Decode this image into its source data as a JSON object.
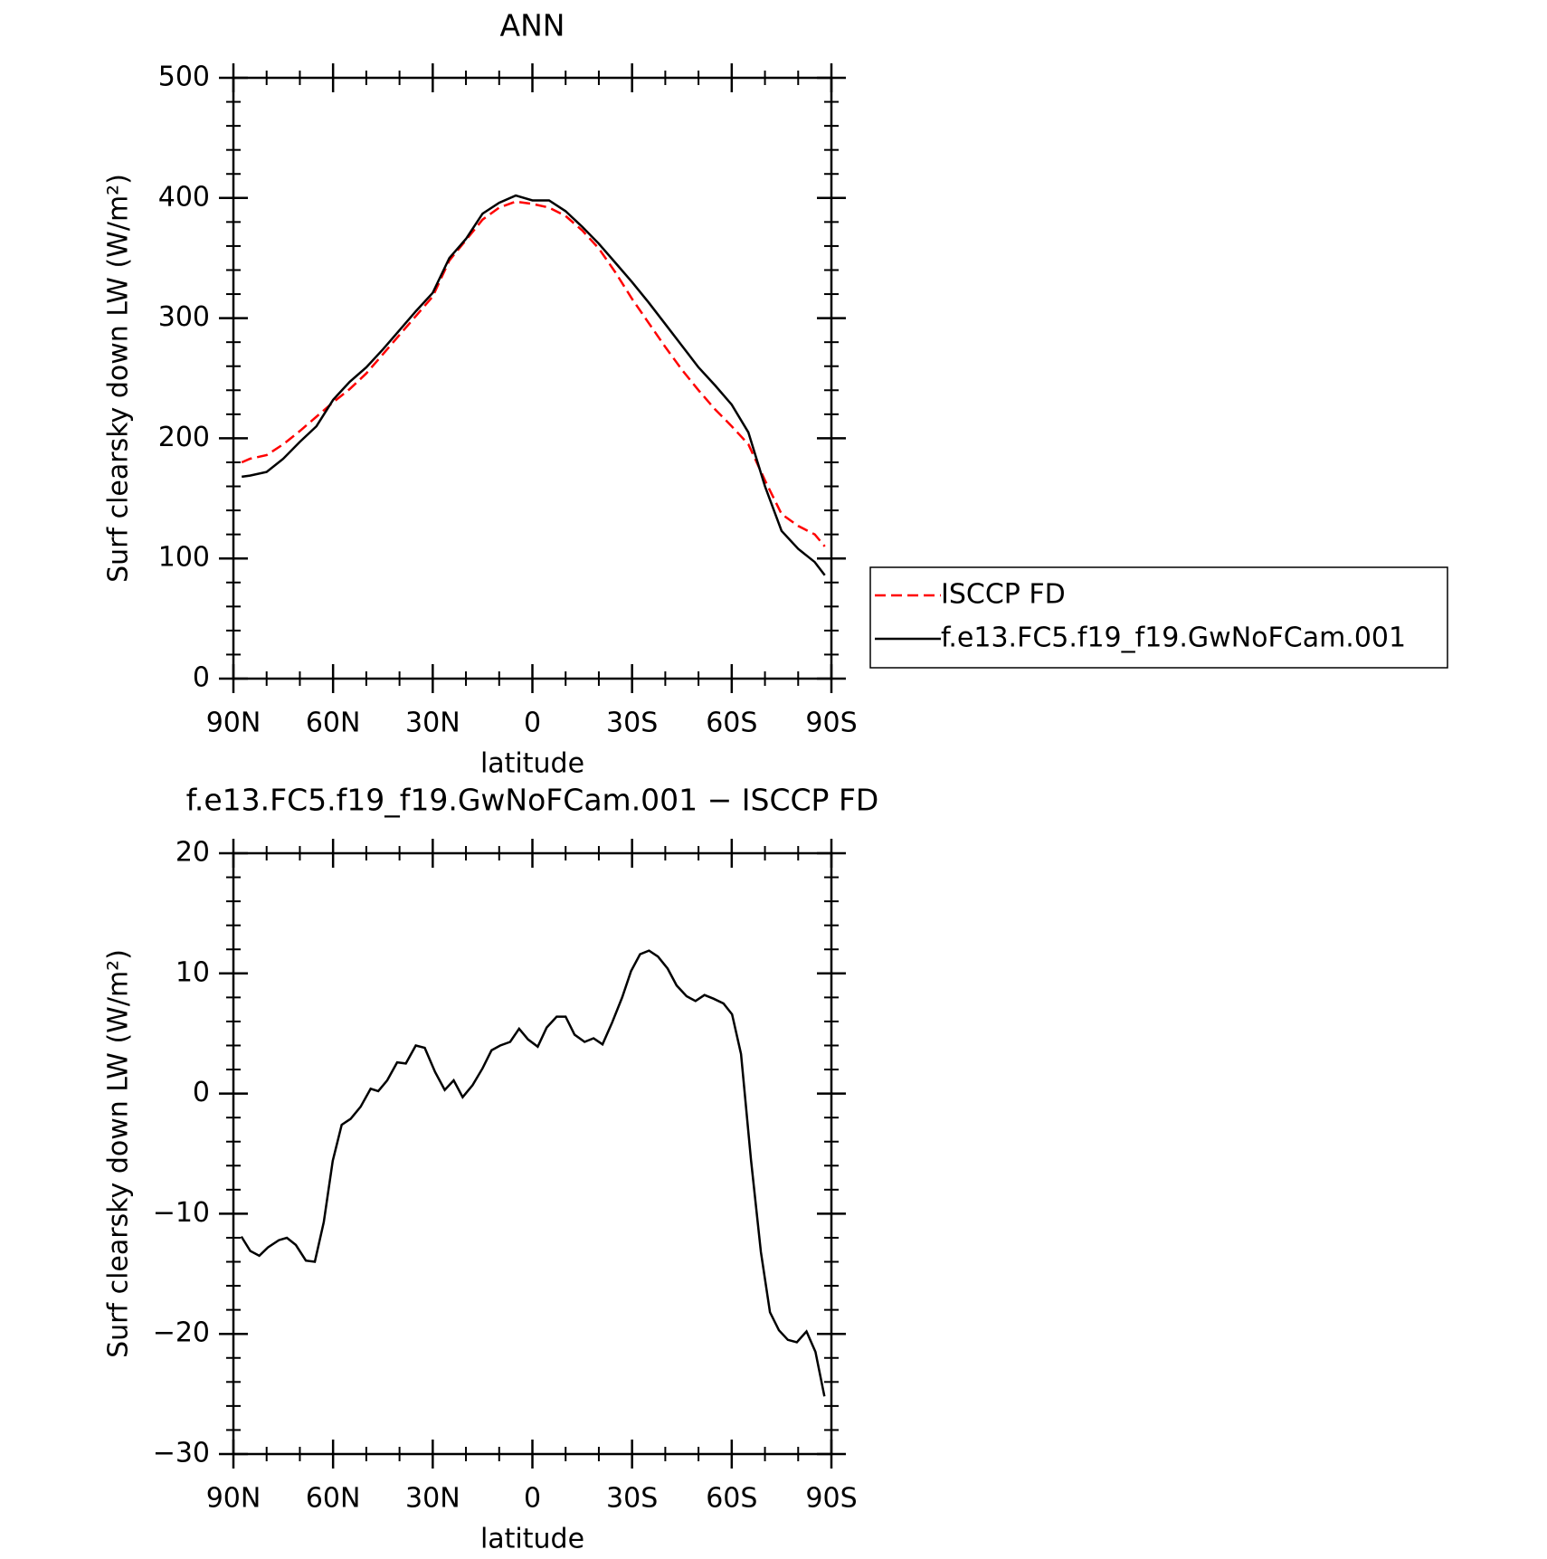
{
  "chart_data": [
    {
      "type": "line",
      "title": "ANN",
      "xlabel": "latitude",
      "ylabel": "Surf clearsky down LW (W/m²)",
      "x": [
        87.5,
        85,
        80,
        75,
        70,
        65,
        60,
        55,
        50,
        45,
        40,
        35,
        30,
        25,
        20,
        15,
        10,
        5,
        0,
        -5,
        -10,
        -15,
        -20,
        -25,
        -30,
        -35,
        -40,
        -45,
        -50,
        -55,
        -60,
        -65,
        -70,
        -75,
        -80,
        -85,
        -88
      ],
      "series": [
        {
          "name": "ISCCP FD",
          "color": "#ff0000",
          "style": "dashed",
          "values": [
            180,
            183,
            186,
            195,
            206,
            218,
            230,
            241,
            254,
            270,
            286,
            302,
            318,
            348,
            365,
            382,
            392,
            397,
            395,
            392,
            385,
            373,
            358,
            338,
            316,
            296,
            276,
            257,
            240,
            224,
            210,
            195,
            165,
            137,
            127,
            120,
            110
          ]
        },
        {
          "name": "f.e13.FC5.f19_f19.GwNoFCam.001",
          "color": "#000000",
          "style": "solid",
          "values": [
            168,
            169,
            172,
            183,
            197,
            210,
            232,
            247,
            259,
            274,
            290,
            306,
            321,
            350,
            366,
            387,
            396,
            402,
            398,
            398,
            389,
            376,
            362,
            346,
            330,
            313,
            295,
            277,
            259,
            244,
            228,
            205,
            160,
            123,
            108,
            97,
            86
          ]
        }
      ],
      "xlim": [
        90,
        -90
      ],
      "xticks": [
        {
          "value": 90,
          "label": "90N"
        },
        {
          "value": 60,
          "label": "60N"
        },
        {
          "value": 30,
          "label": "30N"
        },
        0,
        {
          "value": -30,
          "label": "30S"
        },
        {
          "value": -60,
          "label": "60S"
        },
        {
          "value": -90,
          "label": "90S"
        }
      ],
      "xminorticks": [
        80,
        70,
        50,
        40,
        20,
        10,
        -10,
        -20,
        -40,
        -50,
        -70,
        -80
      ],
      "ylim": [
        0,
        500
      ],
      "yticks": [
        0,
        100,
        200,
        300,
        400,
        500
      ],
      "yminorticks": [
        20,
        40,
        60,
        80,
        120,
        140,
        160,
        180,
        220,
        240,
        260,
        280,
        320,
        340,
        360,
        380,
        420,
        440,
        460,
        480
      ]
    },
    {
      "type": "line",
      "title": "f.e13.FC5.f19_f19.GwNoFCam.001 − ISCCP FD",
      "xlabel": "latitude",
      "ylabel": "Surf clearsky down LW (W/m²)",
      "x": [
        87.6,
        84.9,
        82.2,
        79.6,
        76.3,
        73.9,
        71.2,
        68.2,
        65.5,
        62.8,
        60.1,
        57.4,
        54.7,
        51.7,
        48.7,
        46.4,
        43.7,
        40.7,
        38.1,
        35.1,
        32.4,
        29.3,
        26.4,
        23.7,
        21.0,
        18.0,
        15.0,
        12.3,
        9.7,
        6.7,
        4.0,
        1.3,
        -1.6,
        -4.3,
        -7.3,
        -10.0,
        -12.7,
        -15.7,
        -18.4,
        -21.1,
        -24.0,
        -27.0,
        -29.7,
        -32.4,
        -35.1,
        -37.8,
        -40.7,
        -43.4,
        -46.4,
        -49.1,
        -51.8,
        -54.5,
        -57.5,
        -60.1,
        -62.8,
        -65.8,
        -68.8,
        -71.5,
        -74.2,
        -76.9,
        -79.6,
        -82.5,
        -85.2,
        -87.9
      ],
      "series": [
        {
          "name": "f.e13.FC5.f19_f19.GwNoFCam.001 − ISCCP FD",
          "color": "#000000",
          "style": "solid",
          "values": [
            -11.9,
            -13.1,
            -13.5,
            -12.8,
            -12.2,
            -12.0,
            -12.6,
            -13.9,
            -14.0,
            -10.7,
            -5.6,
            -2.6,
            -2.1,
            -1.1,
            0.4,
            0.2,
            1.1,
            2.6,
            2.5,
            4.0,
            3.8,
            1.8,
            0.3,
            1.1,
            -0.3,
            0.7,
            2.1,
            3.6,
            4.0,
            4.3,
            5.4,
            4.5,
            3.9,
            5.5,
            6.4,
            6.4,
            4.9,
            4.3,
            4.6,
            4.1,
            5.9,
            8.0,
            10.2,
            11.6,
            11.9,
            11.4,
            10.4,
            9.0,
            8.1,
            7.7,
            8.2,
            7.9,
            7.5,
            6.6,
            3.3,
            -5.5,
            -13.2,
            -18.2,
            -19.7,
            -20.5,
            -20.7,
            -19.8,
            -21.5,
            -25.2
          ]
        }
      ],
      "xlim": [
        90,
        -90
      ],
      "xticks": [
        {
          "value": 90,
          "label": "90N"
        },
        {
          "value": 60,
          "label": "60N"
        },
        {
          "value": 30,
          "label": "30N"
        },
        0,
        {
          "value": -30,
          "label": "30S"
        },
        {
          "value": -60,
          "label": "60S"
        },
        {
          "value": -90,
          "label": "90S"
        }
      ],
      "xminorticks": [
        80,
        70,
        50,
        40,
        20,
        10,
        -10,
        -20,
        -40,
        -50,
        -70,
        -80
      ],
      "ylim": [
        -30,
        20
      ],
      "yticks": [
        {
          "value": -30,
          "label": "−30"
        },
        {
          "value": -20,
          "label": "−20"
        },
        {
          "value": -10,
          "label": "−10"
        },
        0,
        10,
        20
      ],
      "yminorticks": [
        -28,
        -26,
        -24,
        -22,
        -18,
        -16,
        -14,
        -12,
        -8,
        -6,
        -4,
        -2,
        2,
        4,
        6,
        8,
        12,
        14,
        16,
        18
      ]
    }
  ]
}
